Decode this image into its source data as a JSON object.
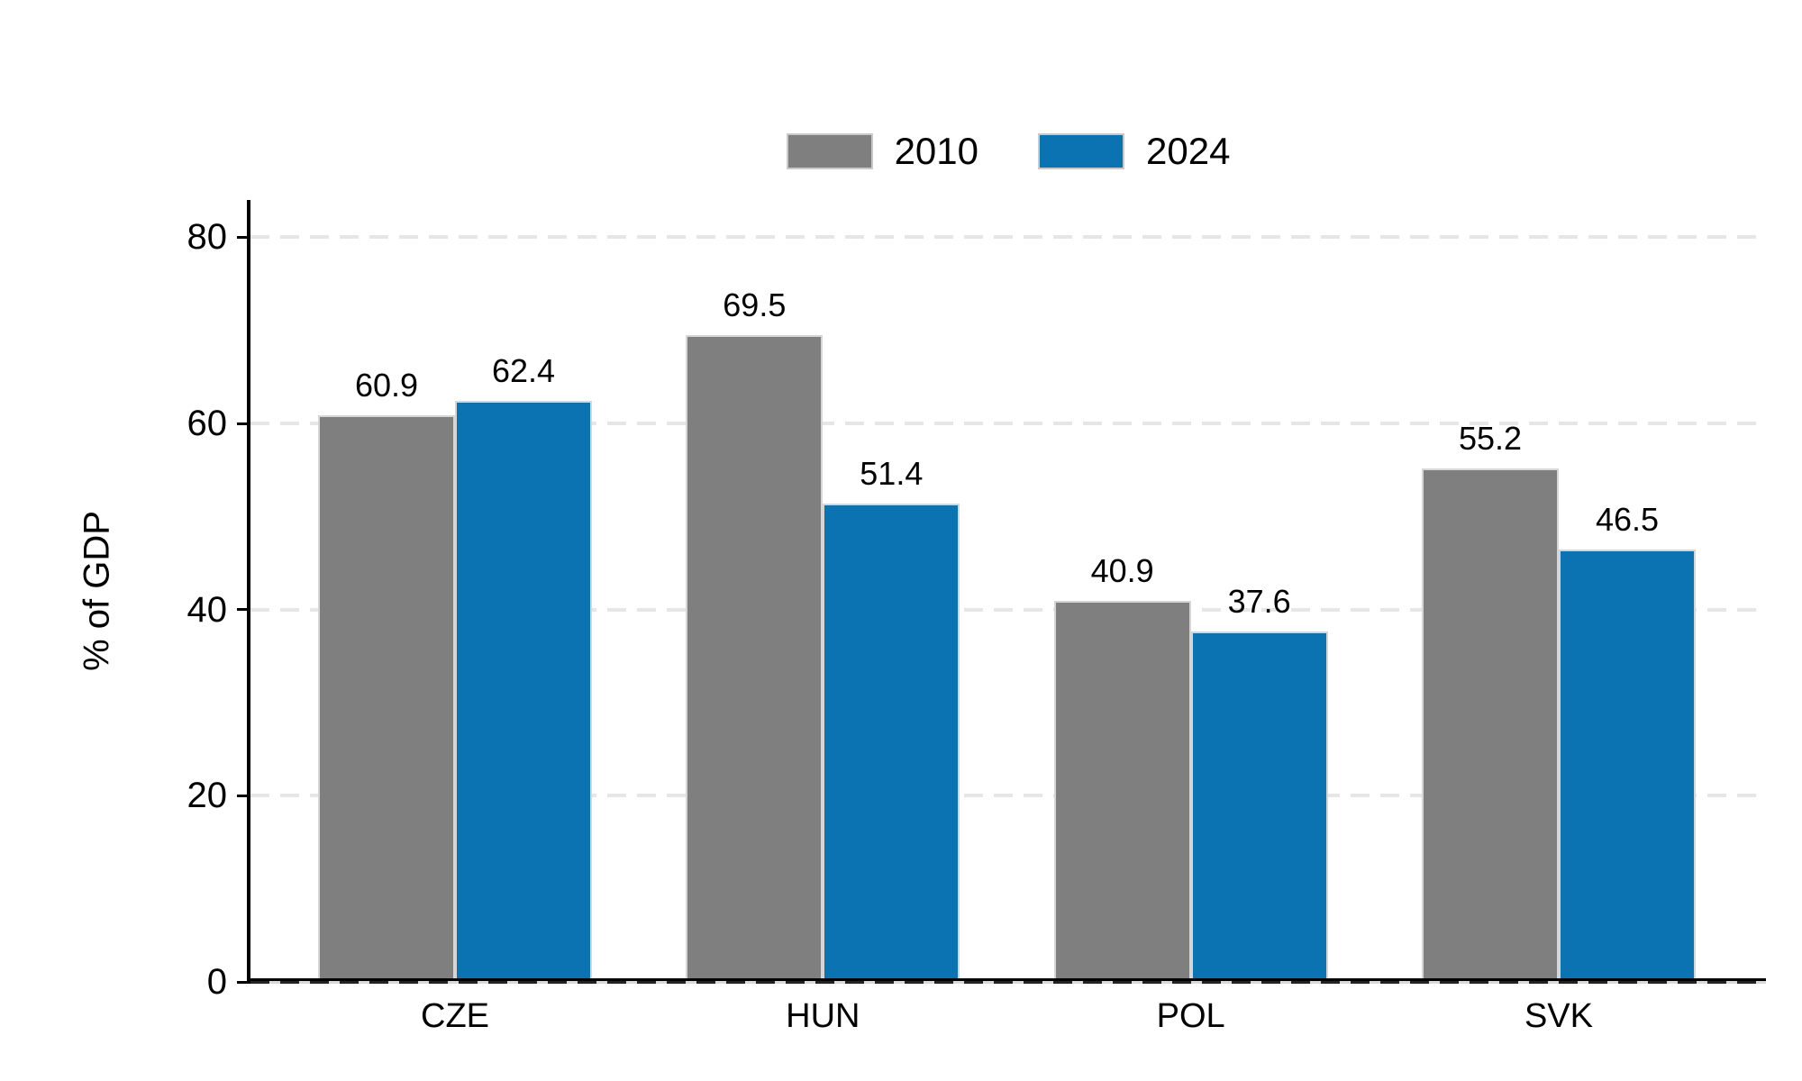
{
  "chart_data": {
    "type": "bar",
    "title": "",
    "categories": [
      "CZE",
      "HUN",
      "POL",
      "SVK"
    ],
    "series": [
      {
        "name": "2010",
        "color": "#7f7f7f",
        "values": [
          60.9,
          69.5,
          40.9,
          55.2
        ]
      },
      {
        "name": "2024",
        "color": "#0b73b2",
        "values": [
          62.4,
          51.4,
          37.6,
          46.5
        ]
      }
    ],
    "value_labels": [
      "60.9",
      "62.4",
      "69.5",
      "51.4",
      "40.9",
      "37.6",
      "55.2",
      "46.5"
    ],
    "xlabel": "",
    "ylabel": "% of GDP",
    "yticks": [
      0,
      20,
      40,
      60,
      80
    ],
    "ylim": [
      0,
      84
    ],
    "grid": "horizontal-dashed",
    "legend_position": "top-center",
    "bar_orientation": "vertical-grouped"
  },
  "style_colors": {
    "bar_2010": "#7f7f7f",
    "bar_2024": "#0b73b2",
    "bar_border": "#d6d6d6",
    "gridline": "#e6e6e6",
    "axis": "#000000",
    "legend_swatch_border": "#c9c9c9",
    "background": "#ffffff"
  }
}
